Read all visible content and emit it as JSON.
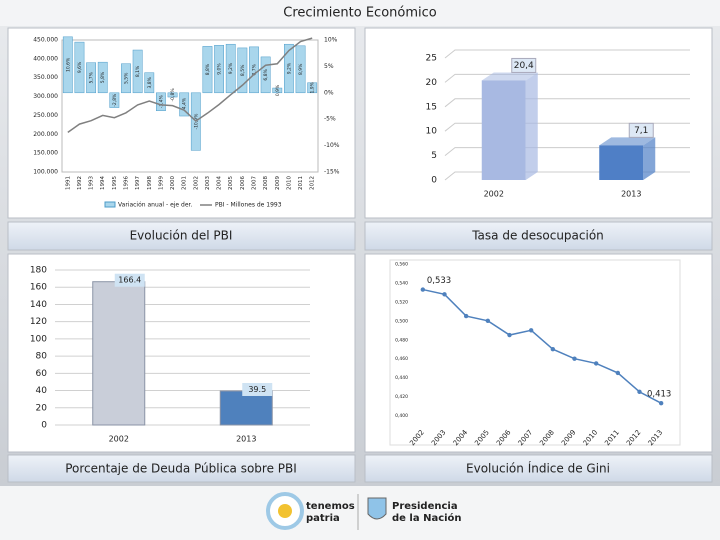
{
  "title": "Crecimiento Económico",
  "footer": {
    "left_logo": [
      "tenemos",
      "patria"
    ],
    "right_logo": [
      "Presidencia",
      "de la Nación"
    ]
  },
  "chart_data": [
    {
      "type": "combo",
      "title": "Evolución del PBI",
      "categories": [
        "1991",
        "1992",
        "1993",
        "1994",
        "1995",
        "1996",
        "1997",
        "1998",
        "1999",
        "2000",
        "2001",
        "2002",
        "2003",
        "2004",
        "2005",
        "2006",
        "2007",
        "2008",
        "2009",
        "2010",
        "2011",
        "2012"
      ],
      "series": [
        {
          "name": "Variación anual - eje der.",
          "color": "#a9d6ec",
          "axis": "y2",
          "values": [
            10.6,
            9.6,
            5.7,
            5.8,
            -2.8,
            5.5,
            8.1,
            3.8,
            -3.4,
            -0.8,
            -4.4,
            -10.9,
            8.8,
            9.0,
            9.2,
            8.5,
            8.7,
            6.8,
            0.9,
            9.2,
            8.9,
            1.9
          ],
          "value_labels": [
            "10,6%",
            "9,6%",
            "5,7%",
            "5,8%",
            "-2,8%",
            "5,5%",
            "8,1%",
            "3,8%",
            "-3,4%",
            "-0,8%",
            "-4,4%",
            "-10,9%",
            "8,8%",
            "9,0%",
            "9,2%",
            "8,5%",
            "8,7%",
            "6,8%",
            "0,9%",
            "9,2%",
            "8,9%",
            "1,9%"
          ]
        },
        {
          "name": "PBI - Millones de 1993",
          "color": "#808080",
          "values": [
            205000,
            227000,
            236000,
            250000,
            244000,
            257000,
            278000,
            288000,
            278000,
            276000,
            264000,
            235000,
            256000,
            279000,
            305000,
            330000,
            359000,
            383000,
            387000,
            422000,
            446000,
            455000
          ]
        }
      ],
      "ylim": [
        100000,
        450000
      ],
      "yticks": [
        {
          "value": 100000,
          "label": "100.000"
        },
        {
          "value": 150000,
          "label": "150.000"
        },
        {
          "value": 200000,
          "label": "200.000"
        },
        {
          "value": 250000,
          "label": "250.000"
        },
        {
          "value": 300000,
          "label": "300.000"
        },
        {
          "value": 350000,
          "label": "350.000"
        },
        {
          "value": 400000,
          "label": "400.000"
        },
        {
          "value": 450000,
          "label": "450.000"
        }
      ],
      "y2lim": [
        -15,
        10
      ],
      "y2ticks": [
        {
          "value": -15,
          "label": "-15%"
        },
        {
          "value": -10,
          "label": "-10%"
        },
        {
          "value": -5,
          "label": "-5%"
        },
        {
          "value": 0,
          "label": "0%"
        },
        {
          "value": 5,
          "label": "5%"
        },
        {
          "value": 10,
          "label": "10%"
        }
      ]
    },
    {
      "type": "bar3d",
      "title": "Tasa de desocupación",
      "categories": [
        "2002",
        "2013"
      ],
      "values": [
        20.4,
        7.1
      ],
      "value_labels": [
        "20,4",
        "7,1"
      ],
      "colors": [
        "#a8b9e2",
        "#4f7fc6"
      ],
      "ylim": [
        0,
        25
      ],
      "yticks": [
        0,
        5,
        10,
        15,
        20,
        25
      ],
      "grid": true
    },
    {
      "type": "bar",
      "title": "Porcentaje de Deuda Pública sobre PBI",
      "categories": [
        "2002",
        "2013"
      ],
      "values": [
        166.4,
        39.5
      ],
      "colors": [
        "#c9ced9",
        "#4f81bd"
      ],
      "ylim": [
        0,
        180
      ],
      "yticks": [
        0,
        20,
        40,
        60,
        80,
        100,
        120,
        140,
        160,
        180
      ],
      "grid": true
    },
    {
      "type": "line",
      "title": "Evolución Índice de Gini",
      "categories": [
        "2002",
        "2003",
        "2004",
        "2005",
        "2006",
        "2007",
        "2008",
        "2009",
        "2010",
        "2011",
        "2012",
        "2013"
      ],
      "values": [
        0.533,
        0.528,
        0.505,
        0.5,
        0.485,
        0.49,
        0.47,
        0.46,
        0.455,
        0.445,
        0.425,
        0.413
      ],
      "value_labels": [
        "0,533",
        null,
        null,
        null,
        null,
        null,
        null,
        null,
        null,
        null,
        null,
        "0,413"
      ],
      "color": "#4f81bd",
      "ylim": [
        0.39,
        0.56
      ],
      "yticks": [
        {
          "value": 0.4,
          "label": "0,400"
        },
        {
          "value": 0.42,
          "label": "0,420"
        },
        {
          "value": 0.44,
          "label": "0,440"
        },
        {
          "value": 0.46,
          "label": "0,460"
        },
        {
          "value": 0.48,
          "label": "0,480"
        },
        {
          "value": 0.5,
          "label": "0,500"
        },
        {
          "value": 0.52,
          "label": "0,520"
        },
        {
          "value": 0.54,
          "label": "0,540"
        },
        {
          "value": 0.56,
          "label": "0,560"
        }
      ],
      "grid": false
    }
  ]
}
